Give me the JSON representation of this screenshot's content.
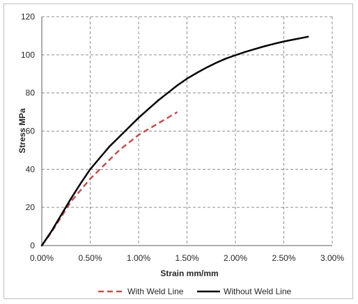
{
  "chart_data": {
    "type": "line",
    "title": "",
    "xlabel": "Strain mm/mm",
    "ylabel": "Stress MPa",
    "xlim": [
      0,
      0.03
    ],
    "ylim": [
      0,
      120
    ],
    "x_ticks": [
      0,
      0.005,
      0.01,
      0.015,
      0.02,
      0.025,
      0.03
    ],
    "x_tick_labels": [
      "0.00%",
      "0.50%",
      "1.00%",
      "1.50%",
      "2.00%",
      "2.50%",
      "3.00%"
    ],
    "y_ticks": [
      0,
      20,
      40,
      60,
      80,
      100,
      120
    ],
    "y_tick_labels": [
      "0",
      "20",
      "40",
      "60",
      "80",
      "100",
      "120"
    ],
    "grid": true,
    "legend_position": "bottom",
    "series": [
      {
        "name": "With Weld Line",
        "color": "#c0504d",
        "dash": "dashed",
        "x": [
          0,
          0.001,
          0.002,
          0.003,
          0.004,
          0.005,
          0.006,
          0.007,
          0.008,
          0.009,
          0.01,
          0.011,
          0.012,
          0.013,
          0.014
        ],
        "y": [
          0,
          7,
          15,
          23,
          29,
          35,
          40,
          45,
          50,
          54,
          58,
          61,
          64,
          67,
          70
        ]
      },
      {
        "name": "Without Weld Line",
        "color": "#000000",
        "dash": "solid",
        "x": [
          0,
          0.001,
          0.002,
          0.003,
          0.004,
          0.005,
          0.006,
          0.007,
          0.008,
          0.009,
          0.01,
          0.011,
          0.012,
          0.013,
          0.014,
          0.015,
          0.016,
          0.017,
          0.018,
          0.019,
          0.02,
          0.021,
          0.022,
          0.023,
          0.024,
          0.025,
          0.026,
          0.0275
        ],
        "y": [
          0,
          7.5,
          16,
          24.5,
          32.5,
          40,
          46,
          52,
          57,
          62,
          67,
          71.5,
          76,
          80,
          84,
          87.5,
          90.5,
          93.3,
          95.8,
          98,
          99.8,
          101.5,
          103,
          104.5,
          105.8,
          107,
          108,
          109.5
        ]
      }
    ]
  }
}
